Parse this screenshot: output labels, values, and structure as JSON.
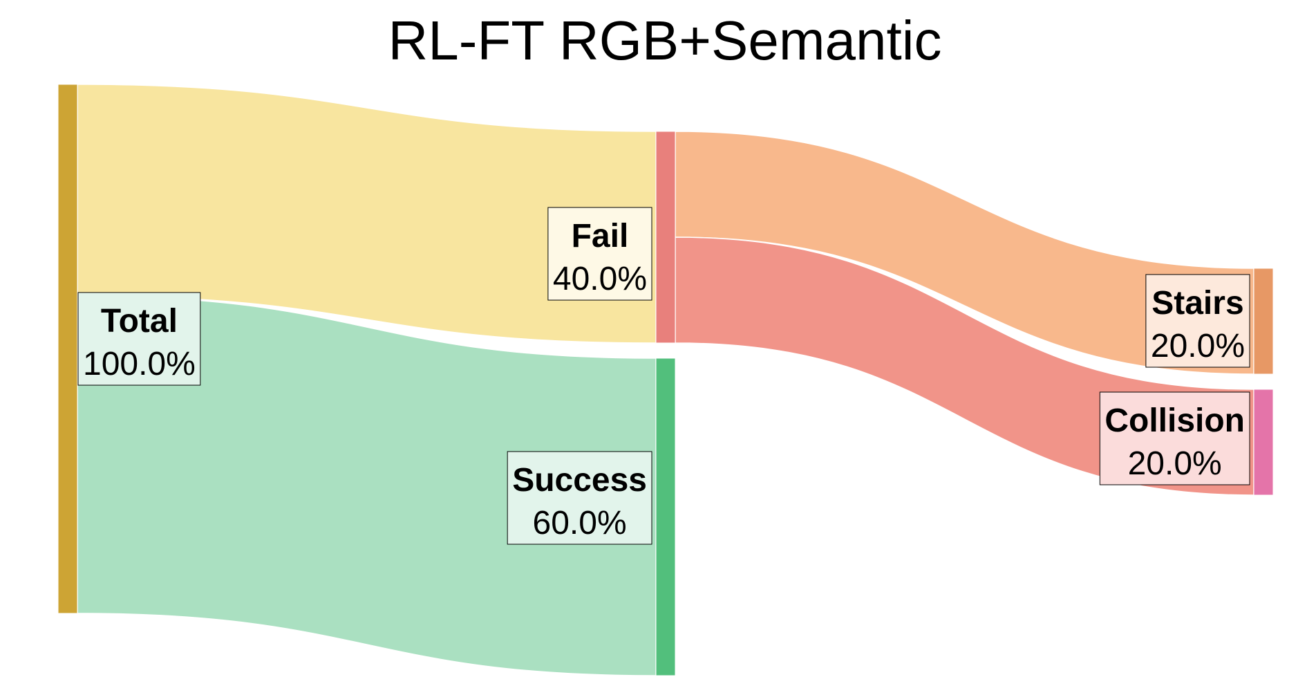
{
  "chart_data": {
    "type": "sankey",
    "title": "RL-FT RGB+Semantic",
    "nodes": [
      {
        "id": "total",
        "name": "Total",
        "value_label": "100.0%",
        "value": 100.0,
        "color": "#cda434",
        "label_bg": "#e2f4eb"
      },
      {
        "id": "fail",
        "name": "Fail",
        "value_label": "40.0%",
        "value": 40.0,
        "color": "#e8807c",
        "label_bg": "#fef9e6"
      },
      {
        "id": "success",
        "name": "Success",
        "value_label": "60.0%",
        "value": 60.0,
        "color": "#52bf7c",
        "label_bg": "#e2f4eb"
      },
      {
        "id": "stairs",
        "name": "Stairs",
        "value_label": "20.0%",
        "value": 20.0,
        "color": "#e79865",
        "label_bg": "#fde9dc"
      },
      {
        "id": "collision",
        "name": "Collision",
        "value_label": "20.0%",
        "value": 20.0,
        "color": "#e474a9",
        "label_bg": "#fbdcdb"
      }
    ],
    "links": [
      {
        "source": "total",
        "target": "fail",
        "value": 40.0,
        "color": "#f8e59f"
      },
      {
        "source": "total",
        "target": "success",
        "value": 60.0,
        "color": "#aae0c1"
      },
      {
        "source": "fail",
        "target": "stairs",
        "value": 20.0,
        "color": "#f8b88c"
      },
      {
        "source": "fail",
        "target": "collision",
        "value": 20.0,
        "color": "#f19489"
      }
    ]
  }
}
